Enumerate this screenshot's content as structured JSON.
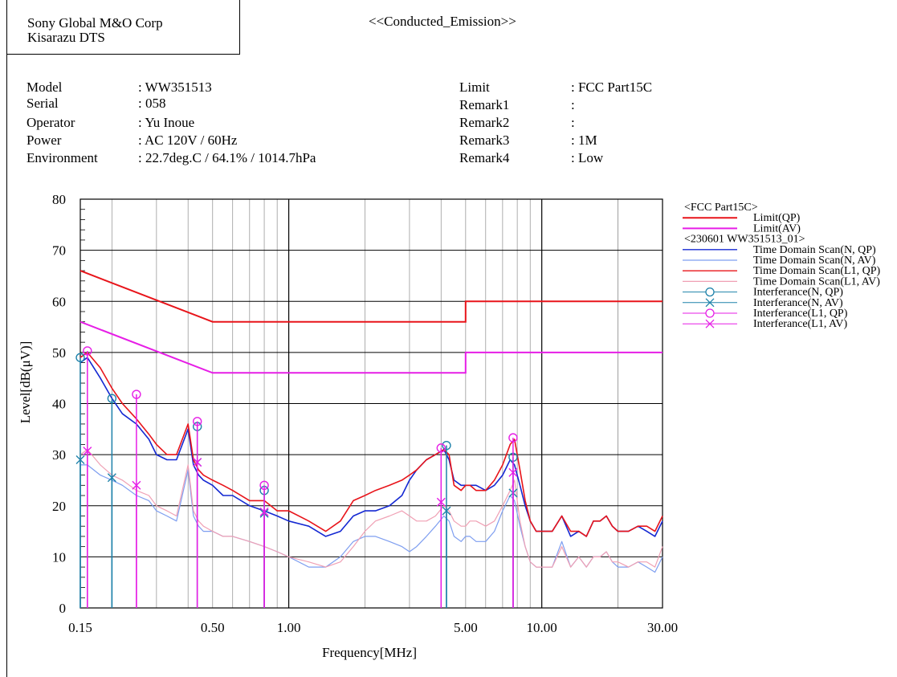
{
  "header": {
    "company_line1": "Sony Global M&O Corp",
    "company_line2": "Kisarazu DTS",
    "title": "<<Conducted_Emission>>"
  },
  "info_left": [
    {
      "label": "Model",
      "value": ": WW351513"
    },
    {
      "label": "Serial",
      "value": ": 058"
    },
    {
      "label": "Operator",
      "value": ": Yu Inoue"
    },
    {
      "label": "Power",
      "value": ": AC  120V /  60Hz"
    },
    {
      "label": "Environment",
      "value": ": 22.7deg.C  /  64.1%  /  1014.7hPa"
    }
  ],
  "info_right": [
    {
      "label": "Limit",
      "value": ": FCC Part15C"
    },
    {
      "label": "Remark1",
      "value": ":"
    },
    {
      "label": "Remark2",
      "value": ":"
    },
    {
      "label": "Remark3",
      "value": ": 1M"
    },
    {
      "label": "Remark4",
      "value": ": Low"
    }
  ],
  "chart_data": {
    "type": "line",
    "xlabel": "Frequency[MHz]",
    "ylabel": "Level[dB(μV)]",
    "x_scale": "log",
    "xlim": [
      0.15,
      30
    ],
    "ylim": [
      0,
      80
    ],
    "x_ticks": [
      0.15,
      0.5,
      1,
      5,
      10,
      30
    ],
    "x_tick_labels": [
      "0.15",
      "0.50",
      "1.00",
      "5.00",
      "10.00",
      "30.00"
    ],
    "y_ticks": [
      0,
      10,
      20,
      30,
      40,
      50,
      60,
      70,
      80
    ],
    "y_tick_labels": [
      "0",
      "10",
      "20",
      "30",
      "40",
      "50",
      "60",
      "70",
      "80"
    ],
    "grid": true,
    "legend_position": "right",
    "legend_group1_title": "<FCC Part15C>",
    "legend_group2_title": "<230601 WW351513_01>",
    "limits": [
      {
        "name": "Limit(QP)",
        "color": "#e8141a",
        "x": [
          0.15,
          0.5,
          0.5,
          5,
          5,
          30
        ],
        "y": [
          66,
          56,
          56,
          56,
          60,
          60
        ]
      },
      {
        "name": "Limit(AV)",
        "color": "#e61ee6",
        "x": [
          0.15,
          0.5,
          0.5,
          5,
          5,
          30
        ],
        "y": [
          56,
          46,
          46,
          46,
          50,
          50
        ]
      }
    ],
    "series": [
      {
        "name": "Time Domain Scan(N, QP)",
        "color": "#1428d2",
        "x": [
          0.15,
          0.16,
          0.18,
          0.2,
          0.22,
          0.25,
          0.28,
          0.3,
          0.33,
          0.36,
          0.4,
          0.42,
          0.44,
          0.46,
          0.5,
          0.55,
          0.6,
          0.7,
          0.8,
          0.9,
          1.0,
          1.2,
          1.4,
          1.6,
          1.8,
          2.0,
          2.2,
          2.5,
          2.8,
          3.0,
          3.2,
          3.5,
          3.8,
          4.1,
          4.3,
          4.5,
          4.8,
          5.0,
          5.2,
          5.5,
          6.0,
          6.5,
          7.0,
          7.5,
          7.8,
          8.2,
          8.6,
          9.0,
          9.5,
          10.0,
          11.0,
          12.0,
          13.0,
          14.0,
          15.0,
          16.0,
          17.0,
          18.0,
          19.0,
          20.0,
          22.0,
          24.0,
          26.0,
          28.0,
          30.0
        ],
        "y": [
          48,
          49,
          45,
          41,
          38,
          36,
          33,
          30,
          29,
          29,
          35,
          28,
          26,
          25,
          24,
          22,
          22,
          20,
          19,
          18,
          17,
          16,
          14,
          15,
          18,
          19,
          19,
          20,
          22,
          25,
          27,
          29,
          30,
          31,
          29,
          25,
          24,
          24,
          24,
          24,
          23,
          24,
          26,
          29,
          28,
          24,
          20,
          17,
          15,
          15,
          15,
          18,
          14,
          15,
          14,
          17,
          17,
          18,
          16,
          15,
          15,
          16,
          15,
          14,
          17
        ]
      },
      {
        "name": "Time Domain Scan(N, AV)",
        "color": "#7e9ef0",
        "x": [
          0.15,
          0.16,
          0.18,
          0.2,
          0.22,
          0.25,
          0.28,
          0.3,
          0.33,
          0.36,
          0.4,
          0.42,
          0.44,
          0.46,
          0.5,
          0.55,
          0.6,
          0.7,
          0.8,
          0.9,
          1.0,
          1.2,
          1.4,
          1.6,
          1.8,
          2.0,
          2.2,
          2.5,
          2.8,
          3.0,
          3.2,
          3.5,
          3.8,
          4.1,
          4.3,
          4.5,
          4.8,
          5.0,
          5.2,
          5.5,
          6.0,
          6.5,
          7.0,
          7.5,
          7.8,
          8.2,
          8.6,
          9.0,
          9.5,
          10.0,
          11.0,
          12.0,
          13.0,
          14.0,
          15.0,
          16.0,
          17.0,
          18.0,
          19.0,
          20.0,
          22.0,
          24.0,
          26.0,
          28.0,
          30.0
        ],
        "y": [
          28,
          28,
          26,
          25,
          24,
          22,
          21,
          19,
          18,
          17,
          27,
          18,
          16,
          15,
          15,
          14,
          14,
          13,
          12,
          11,
          10,
          8,
          8,
          10,
          13,
          14,
          14,
          13,
          12,
          11,
          12,
          14,
          16,
          18,
          17,
          14,
          13,
          14,
          14,
          13,
          13,
          15,
          19,
          22,
          21,
          16,
          12,
          9,
          8,
          8,
          8,
          13,
          8,
          10,
          8,
          10,
          10,
          11,
          9,
          8,
          8,
          9,
          8,
          7,
          10
        ]
      },
      {
        "name": "Time Domain Scan(L1, QP)",
        "color": "#e8141a",
        "x": [
          0.15,
          0.16,
          0.18,
          0.2,
          0.22,
          0.25,
          0.28,
          0.3,
          0.33,
          0.36,
          0.4,
          0.42,
          0.44,
          0.46,
          0.5,
          0.55,
          0.6,
          0.7,
          0.8,
          0.9,
          1.0,
          1.2,
          1.4,
          1.6,
          1.8,
          2.0,
          2.2,
          2.5,
          2.8,
          3.0,
          3.2,
          3.5,
          3.8,
          4.1,
          4.3,
          4.5,
          4.8,
          5.0,
          5.2,
          5.5,
          6.0,
          6.5,
          7.0,
          7.5,
          7.8,
          8.2,
          8.6,
          9.0,
          9.5,
          10.0,
          11.0,
          12.0,
          13.0,
          14.0,
          15.0,
          16.0,
          17.0,
          18.0,
          19.0,
          20.0,
          22.0,
          24.0,
          26.0,
          28.0,
          30.0
        ],
        "y": [
          49,
          50,
          47,
          43,
          40,
          37,
          34,
          32,
          30,
          30,
          36,
          29,
          27,
          26,
          25,
          24,
          23,
          21,
          21,
          19,
          19,
          17,
          15,
          17,
          21,
          22,
          23,
          24,
          25,
          26,
          27,
          29,
          30,
          31,
          30,
          24,
          23,
          24,
          24,
          23,
          23,
          25,
          28,
          32,
          33,
          27,
          21,
          17,
          15,
          15,
          15,
          18,
          15,
          15,
          14,
          17,
          17,
          18,
          16,
          15,
          15,
          16,
          16,
          15,
          18
        ]
      },
      {
        "name": "Time Domain Scan(L1, AV)",
        "color": "#f0a0b4",
        "x": [
          0.15,
          0.16,
          0.18,
          0.2,
          0.22,
          0.25,
          0.28,
          0.3,
          0.33,
          0.36,
          0.4,
          0.42,
          0.44,
          0.46,
          0.5,
          0.55,
          0.6,
          0.7,
          0.8,
          0.9,
          1.0,
          1.2,
          1.4,
          1.6,
          1.8,
          2.0,
          2.2,
          2.5,
          2.8,
          3.0,
          3.2,
          3.5,
          3.8,
          4.1,
          4.3,
          4.5,
          4.8,
          5.0,
          5.2,
          5.5,
          6.0,
          6.5,
          7.0,
          7.5,
          7.8,
          8.2,
          8.6,
          9.0,
          9.5,
          10.0,
          11.0,
          12.0,
          13.0,
          14.0,
          15.0,
          16.0,
          17.0,
          18.0,
          19.0,
          20.0,
          22.0,
          24.0,
          26.0,
          28.0,
          30.0
        ],
        "y": [
          30,
          31,
          28,
          26,
          25,
          23,
          22,
          20,
          19,
          18,
          28,
          19,
          17,
          16,
          15,
          14,
          14,
          13,
          12,
          11,
          10,
          9,
          8,
          9,
          12,
          15,
          17,
          18,
          19,
          18,
          17,
          17,
          18,
          20,
          19,
          17,
          16,
          16,
          17,
          17,
          16,
          17,
          20,
          23,
          25,
          17,
          12,
          9,
          8,
          8,
          8,
          12,
          8,
          10,
          8,
          10,
          10,
          11,
          9,
          9,
          8,
          9,
          9,
          8,
          12
        ]
      }
    ],
    "markers": [
      {
        "name": "Interferance(N, QP)",
        "symbol": "circle",
        "color": "#1e82aa",
        "x": [
          0.15,
          0.2,
          0.435,
          0.8,
          4.2,
          7.7
        ],
        "y": [
          49,
          41,
          35.5,
          23,
          31.8,
          29.5
        ]
      },
      {
        "name": "Interferance(N, AV)",
        "symbol": "cross",
        "color": "#1e82aa",
        "x": [
          0.15,
          0.2,
          0.435,
          0.8,
          4.2,
          7.7
        ],
        "y": [
          29,
          25.5,
          28.5,
          18.5,
          19,
          22.5
        ]
      },
      {
        "name": "Interferance(L1, QP)",
        "symbol": "circle",
        "color": "#e61ee6",
        "x": [
          0.16,
          0.25,
          0.435,
          0.8,
          4.0,
          7.7
        ],
        "y": [
          50.3,
          41.8,
          36.5,
          24,
          31.3,
          33.3
        ]
      },
      {
        "name": "Interferance(L1, AV)",
        "symbol": "cross",
        "color": "#e61ee6",
        "x": [
          0.16,
          0.25,
          0.435,
          0.8,
          4.0,
          7.7
        ],
        "y": [
          30.7,
          24,
          28.5,
          18.8,
          20.7,
          26.5
        ]
      }
    ]
  }
}
